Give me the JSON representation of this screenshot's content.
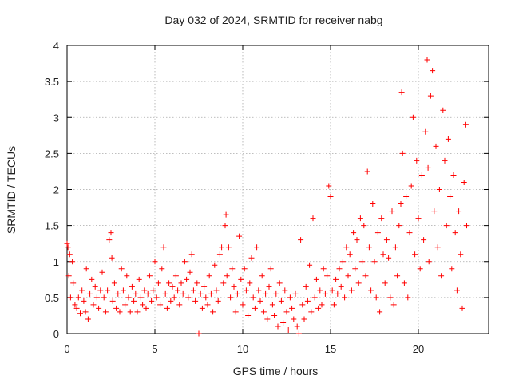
{
  "chart_data": {
    "type": "scatter",
    "title": "Day 032 of 2024, SRMTID for receiver nabg",
    "xlabel": "GPS time / hours",
    "ylabel": "SRMTID / TECUs",
    "xlim": [
      0,
      24
    ],
    "ylim": [
      0,
      4
    ],
    "xticks": [
      0,
      5,
      10,
      15,
      20
    ],
    "xtick_labels": [
      "0",
      "5",
      "10",
      "15",
      "20"
    ],
    "yticks": [
      0,
      0.5,
      1,
      1.5,
      2,
      2.5,
      3,
      3.5,
      4
    ],
    "ytick_labels": [
      "0",
      "0.5",
      "1",
      "1.5",
      "2",
      "2.5",
      "3",
      "3.5",
      "4"
    ],
    "grid": true,
    "marker": "+",
    "marker_color": "#ff0000",
    "series": [
      {
        "name": "SRMTID",
        "points": [
          [
            0.0,
            1.25
          ],
          [
            0.05,
            1.2
          ],
          [
            0.1,
            0.8
          ],
          [
            0.15,
            1.1
          ],
          [
            0.2,
            0.5
          ],
          [
            0.3,
            1.0
          ],
          [
            0.35,
            0.7
          ],
          [
            0.45,
            0.4
          ],
          [
            0.55,
            0.35
          ],
          [
            0.65,
            0.5
          ],
          [
            0.75,
            0.28
          ],
          [
            0.85,
            0.6
          ],
          [
            0.95,
            0.45
          ],
          [
            1.05,
            0.3
          ],
          [
            1.1,
            0.9
          ],
          [
            1.2,
            0.2
          ],
          [
            1.3,
            0.55
          ],
          [
            1.4,
            0.75
          ],
          [
            1.5,
            0.4
          ],
          [
            1.6,
            0.65
          ],
          [
            1.7,
            0.5
          ],
          [
            1.8,
            0.35
          ],
          [
            1.9,
            0.6
          ],
          [
            2.0,
            0.85
          ],
          [
            2.1,
            0.5
          ],
          [
            2.2,
            0.3
          ],
          [
            2.3,
            0.6
          ],
          [
            2.4,
            1.3
          ],
          [
            2.5,
            1.4
          ],
          [
            2.55,
            1.05
          ],
          [
            2.6,
            0.45
          ],
          [
            2.7,
            0.7
          ],
          [
            2.8,
            0.35
          ],
          [
            2.9,
            0.55
          ],
          [
            3.0,
            0.3
          ],
          [
            3.1,
            0.9
          ],
          [
            3.2,
            0.6
          ],
          [
            3.3,
            0.4
          ],
          [
            3.4,
            0.8
          ],
          [
            3.5,
            0.5
          ],
          [
            3.6,
            0.3
          ],
          [
            3.7,
            0.65
          ],
          [
            3.8,
            0.45
          ],
          [
            3.9,
            0.55
          ],
          [
            4.0,
            0.3
          ],
          [
            4.1,
            0.75
          ],
          [
            4.2,
            0.5
          ],
          [
            4.3,
            0.4
          ],
          [
            4.4,
            0.6
          ],
          [
            4.5,
            0.35
          ],
          [
            4.6,
            0.55
          ],
          [
            4.7,
            0.8
          ],
          [
            4.8,
            0.45
          ],
          [
            4.9,
            0.6
          ],
          [
            5.0,
            1.0
          ],
          [
            5.1,
            0.5
          ],
          [
            5.2,
            0.7
          ],
          [
            5.3,
            0.4
          ],
          [
            5.4,
            0.9
          ],
          [
            5.5,
            1.2
          ],
          [
            5.6,
            0.55
          ],
          [
            5.7,
            0.35
          ],
          [
            5.8,
            0.7
          ],
          [
            5.9,
            0.45
          ],
          [
            6.0,
            0.65
          ],
          [
            6.1,
            0.5
          ],
          [
            6.2,
            0.8
          ],
          [
            6.3,
            0.6
          ],
          [
            6.4,
            0.4
          ],
          [
            6.5,
            0.7
          ],
          [
            6.6,
            0.55
          ],
          [
            6.7,
            1.0
          ],
          [
            6.8,
            0.75
          ],
          [
            6.9,
            0.5
          ],
          [
            7.0,
            0.85
          ],
          [
            7.1,
            1.1
          ],
          [
            7.2,
            0.6
          ],
          [
            7.3,
            0.45
          ],
          [
            7.4,
            0.7
          ],
          [
            7.5,
            0.0
          ],
          [
            7.6,
            0.55
          ],
          [
            7.7,
            0.35
          ],
          [
            7.8,
            0.65
          ],
          [
            7.9,
            0.5
          ],
          [
            8.0,
            0.4
          ],
          [
            8.1,
            0.8
          ],
          [
            8.2,
            0.55
          ],
          [
            8.3,
            0.3
          ],
          [
            8.4,
            0.95
          ],
          [
            8.5,
            0.6
          ],
          [
            8.6,
            0.45
          ],
          [
            8.7,
            1.1
          ],
          [
            8.8,
            1.2
          ],
          [
            8.9,
            0.7
          ],
          [
            9.0,
            1.5
          ],
          [
            9.05,
            1.65
          ],
          [
            9.1,
            0.8
          ],
          [
            9.2,
            1.2
          ],
          [
            9.3,
            0.5
          ],
          [
            9.4,
            0.9
          ],
          [
            9.5,
            0.65
          ],
          [
            9.6,
            0.3
          ],
          [
            9.7,
            0.55
          ],
          [
            9.8,
            1.35
          ],
          [
            9.9,
            0.75
          ],
          [
            10.0,
            0.4
          ],
          [
            10.1,
            0.9
          ],
          [
            10.2,
            0.6
          ],
          [
            10.3,
            0.25
          ],
          [
            10.4,
            0.7
          ],
          [
            10.5,
            1.05
          ],
          [
            10.6,
            0.5
          ],
          [
            10.7,
            0.35
          ],
          [
            10.8,
            1.2
          ],
          [
            10.9,
            0.6
          ],
          [
            11.0,
            0.45
          ],
          [
            11.1,
            0.8
          ],
          [
            11.2,
            0.3
          ],
          [
            11.3,
            0.55
          ],
          [
            11.4,
            0.2
          ],
          [
            11.5,
            0.65
          ],
          [
            11.6,
            0.9
          ],
          [
            11.7,
            0.4
          ],
          [
            11.8,
            0.25
          ],
          [
            11.9,
            0.55
          ],
          [
            12.0,
            0.1
          ],
          [
            12.1,
            0.7
          ],
          [
            12.2,
            0.45
          ],
          [
            12.3,
            0.15
          ],
          [
            12.4,
            0.6
          ],
          [
            12.5,
            0.3
          ],
          [
            12.6,
            0.05
          ],
          [
            12.7,
            0.5
          ],
          [
            12.8,
            0.35
          ],
          [
            12.9,
            0.2
          ],
          [
            13.0,
            0.55
          ],
          [
            13.1,
            0.1
          ],
          [
            13.2,
            0.0
          ],
          [
            13.3,
            1.3
          ],
          [
            13.4,
            0.4
          ],
          [
            13.5,
            0.2
          ],
          [
            13.6,
            0.65
          ],
          [
            13.7,
            0.45
          ],
          [
            13.8,
            0.95
          ],
          [
            13.9,
            0.3
          ],
          [
            14.0,
            1.6
          ],
          [
            14.1,
            0.5
          ],
          [
            14.2,
            0.75
          ],
          [
            14.3,
            0.35
          ],
          [
            14.4,
            0.6
          ],
          [
            14.5,
            0.4
          ],
          [
            14.6,
            0.9
          ],
          [
            14.7,
            0.55
          ],
          [
            14.8,
            0.8
          ],
          [
            14.9,
            2.05
          ],
          [
            15.0,
            1.9
          ],
          [
            15.1,
            0.6
          ],
          [
            15.2,
            0.4
          ],
          [
            15.3,
            0.75
          ],
          [
            15.4,
            0.55
          ],
          [
            15.5,
            0.9
          ],
          [
            15.6,
            0.65
          ],
          [
            15.7,
            1.0
          ],
          [
            15.8,
            0.5
          ],
          [
            15.9,
            1.2
          ],
          [
            16.0,
            0.8
          ],
          [
            16.1,
            1.1
          ],
          [
            16.2,
            0.6
          ],
          [
            16.3,
            1.4
          ],
          [
            16.4,
            0.9
          ],
          [
            16.5,
            1.3
          ],
          [
            16.6,
            0.7
          ],
          [
            16.7,
            1.6
          ],
          [
            16.8,
            1.0
          ],
          [
            16.9,
            1.5
          ],
          [
            17.0,
            0.8
          ],
          [
            17.1,
            2.25
          ],
          [
            17.2,
            1.2
          ],
          [
            17.3,
            0.6
          ],
          [
            17.4,
            1.8
          ],
          [
            17.5,
            1.0
          ],
          [
            17.6,
            0.5
          ],
          [
            17.7,
            1.4
          ],
          [
            17.8,
            0.3
          ],
          [
            17.9,
            1.6
          ],
          [
            18.0,
            1.1
          ],
          [
            18.1,
            0.7
          ],
          [
            18.2,
            1.3
          ],
          [
            18.3,
            1.05
          ],
          [
            18.4,
            0.5
          ],
          [
            18.5,
            1.7
          ],
          [
            18.6,
            0.4
          ],
          [
            18.7,
            1.2
          ],
          [
            18.8,
            0.8
          ],
          [
            18.9,
            1.5
          ],
          [
            19.0,
            1.8
          ],
          [
            19.05,
            3.35
          ],
          [
            19.1,
            2.5
          ],
          [
            19.2,
            0.7
          ],
          [
            19.3,
            1.9
          ],
          [
            19.4,
            0.5
          ],
          [
            19.5,
            1.4
          ],
          [
            19.6,
            2.05
          ],
          [
            19.7,
            3.0
          ],
          [
            19.8,
            1.1
          ],
          [
            19.9,
            2.4
          ],
          [
            20.0,
            1.6
          ],
          [
            20.1,
            0.9
          ],
          [
            20.2,
            2.2
          ],
          [
            20.3,
            1.3
          ],
          [
            20.4,
            2.8
          ],
          [
            20.5,
            3.8
          ],
          [
            20.55,
            2.3
          ],
          [
            20.6,
            1.0
          ],
          [
            20.7,
            3.3
          ],
          [
            20.8,
            3.65
          ],
          [
            20.9,
            1.7
          ],
          [
            21.0,
            2.6
          ],
          [
            21.1,
            1.2
          ],
          [
            21.2,
            2.0
          ],
          [
            21.3,
            0.8
          ],
          [
            21.4,
            3.1
          ],
          [
            21.5,
            2.4
          ],
          [
            21.6,
            1.5
          ],
          [
            21.7,
            2.7
          ],
          [
            21.8,
            1.9
          ],
          [
            21.9,
            0.9
          ],
          [
            22.0,
            2.2
          ],
          [
            22.1,
            1.4
          ],
          [
            22.2,
            0.6
          ],
          [
            22.3,
            1.7
          ],
          [
            22.4,
            1.1
          ],
          [
            22.5,
            0.35
          ],
          [
            22.6,
            2.1
          ],
          [
            22.7,
            2.9
          ],
          [
            22.75,
            1.5
          ]
        ]
      }
    ]
  }
}
